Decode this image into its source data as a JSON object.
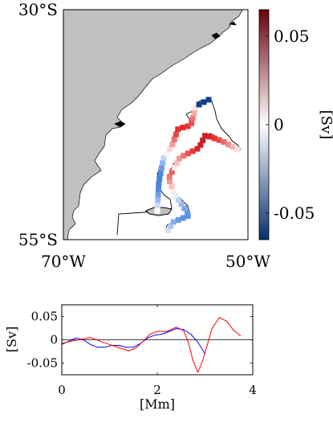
{
  "map_panel": {
    "type": "heatmap",
    "x_ticks": [
      "70°W",
      "50°W"
    ],
    "y_ticks": [
      "30°S",
      "55°S"
    ],
    "colorbar": {
      "label": "[Sv]",
      "range": [
        -0.065,
        0.065
      ],
      "ticks": [
        {
          "value": 0.05,
          "label": "0.05"
        },
        {
          "value": 0,
          "label": "0"
        },
        {
          "value": -0.05,
          "label": "-0.05"
        }
      ],
      "negative_color": "#08306b",
      "zero_color": "#ffffff",
      "positive_color": "#67000d"
    },
    "land_color": "#c0c0c0"
  },
  "chart_data": {
    "type": "line",
    "xlabel": "[Mm]",
    "ylabel": "[Sv]",
    "xlim": [
      0,
      4
    ],
    "ylim": [
      -0.075,
      0.075
    ],
    "x_ticks": [
      0,
      2,
      4
    ],
    "y_ticks": [
      "0.05",
      "0",
      "-0.05"
    ],
    "zero_line": true,
    "series": [
      {
        "color": "#0000ff",
        "points": [
          [
            0,
            -0.01
          ],
          [
            0.15,
            -0.003
          ],
          [
            0.3,
            0.004
          ],
          [
            0.45,
            0.0
          ],
          [
            0.6,
            -0.01
          ],
          [
            0.75,
            -0.016
          ],
          [
            0.9,
            -0.016
          ],
          [
            1.05,
            -0.012
          ],
          [
            1.2,
            -0.012
          ],
          [
            1.35,
            -0.016
          ],
          [
            1.5,
            -0.016
          ],
          [
            1.65,
            -0.008
          ],
          [
            1.8,
            0.004
          ],
          [
            1.95,
            0.01
          ],
          [
            2.1,
            0.012
          ],
          [
            2.25,
            0.018
          ],
          [
            2.4,
            0.024
          ],
          [
            2.55,
            0.022
          ],
          [
            2.7,
            0.012
          ],
          [
            2.85,
            -0.005
          ],
          [
            3.0,
            -0.03
          ]
        ]
      },
      {
        "color": "#ff0000",
        "points": [
          [
            0,
            -0.008
          ],
          [
            0.2,
            -0.003
          ],
          [
            0.4,
            0.001
          ],
          [
            0.6,
            0.005
          ],
          [
            0.8,
            -0.003
          ],
          [
            1.0,
            -0.01
          ],
          [
            1.2,
            -0.017
          ],
          [
            1.4,
            -0.024
          ],
          [
            1.55,
            -0.018
          ],
          [
            1.7,
            -0.004
          ],
          [
            1.85,
            0.012
          ],
          [
            2.0,
            0.018
          ],
          [
            2.2,
            0.018
          ],
          [
            2.4,
            0.027
          ],
          [
            2.55,
            0.02
          ],
          [
            2.65,
            -0.005
          ],
          [
            2.75,
            -0.045
          ],
          [
            2.85,
            -0.07
          ],
          [
            2.95,
            -0.045
          ],
          [
            3.05,
            -0.01
          ],
          [
            3.15,
            0.025
          ],
          [
            3.3,
            0.048
          ],
          [
            3.45,
            0.04
          ],
          [
            3.6,
            0.02
          ],
          [
            3.75,
            0.008
          ]
        ]
      }
    ]
  }
}
